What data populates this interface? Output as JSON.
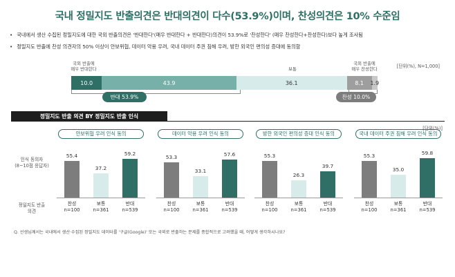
{
  "title": "국내 정밀지도 반출의견은 반대의견이 다수(53.9%)이며, 찬성의견은 10% 수준임",
  "bullets": [
    "국내에서 생산 수집된 정밀지도에 대한 국외 반출의견은 '반대한다'(매우 반대한다 + 반대한다)의견이 53.9%로 '찬성한다' (매우 찬성한다+찬성한다)보다 높게 조사됨",
    "정밀지도 반출에 찬성 의견자의 50% 이상이 안보위협, 데이터 악용 우려, 국내 데이터 주권 침해 우려, 방한 외국인 편의성 증대에 동의함"
  ],
  "top_labels": {
    "left": "국외 반출에\n매우 반대한다",
    "middle": "보통",
    "right": "국외 반출에\n매우 찬성한다",
    "unit": "[단위(%), N=1,000]"
  },
  "summary": {
    "oppose_label": "반대 53.9%",
    "agree_label": "찬성 10.0%"
  },
  "section": {
    "header": "정밀지도 반출 의견 BY 정밀지도 반출 인식",
    "unit": "[단위(%)]",
    "row_label_top": "인식 동의자\n(8~10점 응답자)",
    "row_label_bottom": "정밀지도 반출\n의견"
  },
  "footnote": "Q. 선생님께서는 국내에서 생산·수집된 정밀지도 데이터를 '구글(Google)' 또는 국외로 반출하는 문제를 종합적으로 고려했을 때, 어떻게 생각하시나요?",
  "colors": {
    "dark_teal": "#2f6f66",
    "teal": "#76b0a8",
    "light_teal": "#d7ecea",
    "gray_dark": "#7d7d7d",
    "gray_mid": "#9e9e9e",
    "gray_light": "#c8c8c8"
  },
  "chart_data": [
    {
      "type": "bar",
      "stacked": true,
      "orientation": "horizontal",
      "values": [
        10.0,
        43.9,
        36.1,
        8.1,
        1.9
      ],
      "segment_labels": [
        "10.0",
        "43.9",
        "36.1",
        "8.1",
        "1.9"
      ]
    },
    {
      "type": "bar",
      "panels": [
        {
          "title": "안보위협 우려 인식 동의",
          "categories": [
            "찬성",
            "보통",
            "반대"
          ],
          "n": [
            "n=100",
            "n=361",
            "n=539"
          ],
          "values": [
            55.4,
            37.2,
            59.2
          ]
        },
        {
          "title": "데이터 악용 우려 인식 동의",
          "categories": [
            "찬성",
            "보통",
            "반대"
          ],
          "n": [
            "n=100",
            "n=361",
            "n=539"
          ],
          "values": [
            53.3,
            33.1,
            57.6
          ]
        },
        {
          "title": "방한 외국인 편의성 증대 인식 동의",
          "categories": [
            "찬성",
            "보통",
            "반대"
          ],
          "n": [
            "n=100",
            "n=361",
            "n=539"
          ],
          "values": [
            55.3,
            26.3,
            39.7
          ]
        },
        {
          "title": "국내 데이터 주권 침해 우려 인식 동의",
          "categories": [
            "찬성",
            "보통",
            "반대"
          ],
          "n": [
            "n=100",
            "n=361",
            "n=539"
          ],
          "values": [
            55.3,
            35.0,
            59.8
          ]
        }
      ]
    }
  ]
}
